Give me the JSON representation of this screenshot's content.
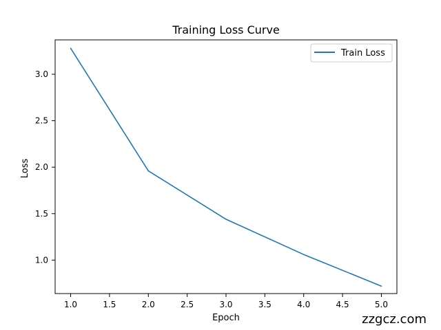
{
  "chart_data": {
    "type": "line",
    "title": "Training Loss Curve",
    "xlabel": "Epoch",
    "ylabel": "Loss",
    "xlim": [
      0.8,
      5.2
    ],
    "ylim": [
      0.64,
      3.37
    ],
    "xticks": [
      1.0,
      1.5,
      2.0,
      2.5,
      3.0,
      3.5,
      4.0,
      4.5,
      5.0
    ],
    "xtick_labels": [
      "1.0",
      "1.5",
      "2.0",
      "2.5",
      "3.0",
      "3.5",
      "4.0",
      "4.5",
      "5.0"
    ],
    "yticks": [
      1.0,
      1.5,
      2.0,
      2.5,
      3.0
    ],
    "ytick_labels": [
      "1.0",
      "1.5",
      "2.0",
      "2.5",
      "3.0"
    ],
    "grid": false,
    "legend_position": "top-right",
    "series": [
      {
        "name": "Train Loss",
        "color": "#1f77b4",
        "x": [
          1,
          2,
          3,
          4,
          5
        ],
        "y": [
          3.28,
          1.96,
          1.44,
          1.06,
          0.72
        ]
      }
    ]
  },
  "watermark": {
    "text": "zzgcz.com"
  }
}
